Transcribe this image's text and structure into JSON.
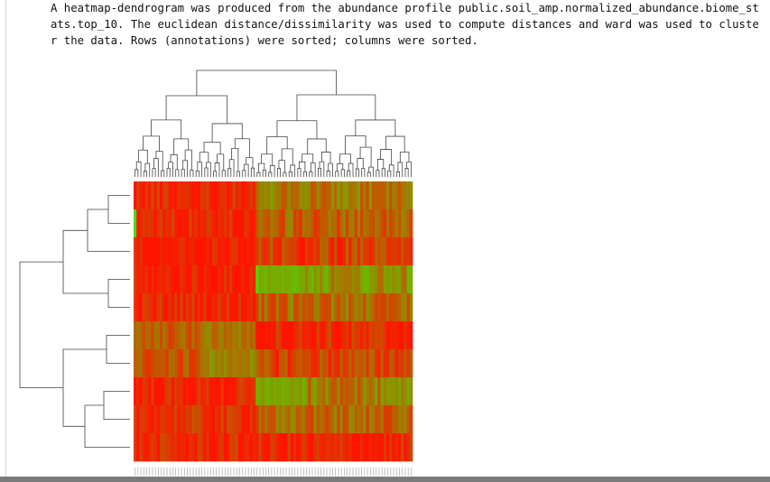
{
  "caption": "A heatmap-dendrogram was produced from the abundance profile public.soil_amp.normalized_abundance.biome_stats.top_10. The euclidean distance/dissimilarity was used to compute distances and ward was used to cluster the data. Rows (annotations) were sorted; columns were sorted.",
  "chart_data": {
    "type": "heatmap",
    "title": "",
    "xlabel": "",
    "ylabel": "",
    "rows": 10,
    "columns": 96,
    "colorscale": {
      "low": "#ff1400",
      "high": "#44ff00"
    },
    "grid": false,
    "legend": "none",
    "column_groups": [
      {
        "columns": "1-42",
        "pattern": "mostly red"
      },
      {
        "columns": "43-96",
        "pattern": "mixed red/olive/green"
      }
    ],
    "row_dendrogram_order": [
      1,
      2,
      3,
      4,
      5,
      6,
      7,
      8,
      9,
      10
    ]
  },
  "colors": {
    "accent_red": "#ff1400",
    "accent_green": "#44ff00",
    "tree": "#444444"
  }
}
